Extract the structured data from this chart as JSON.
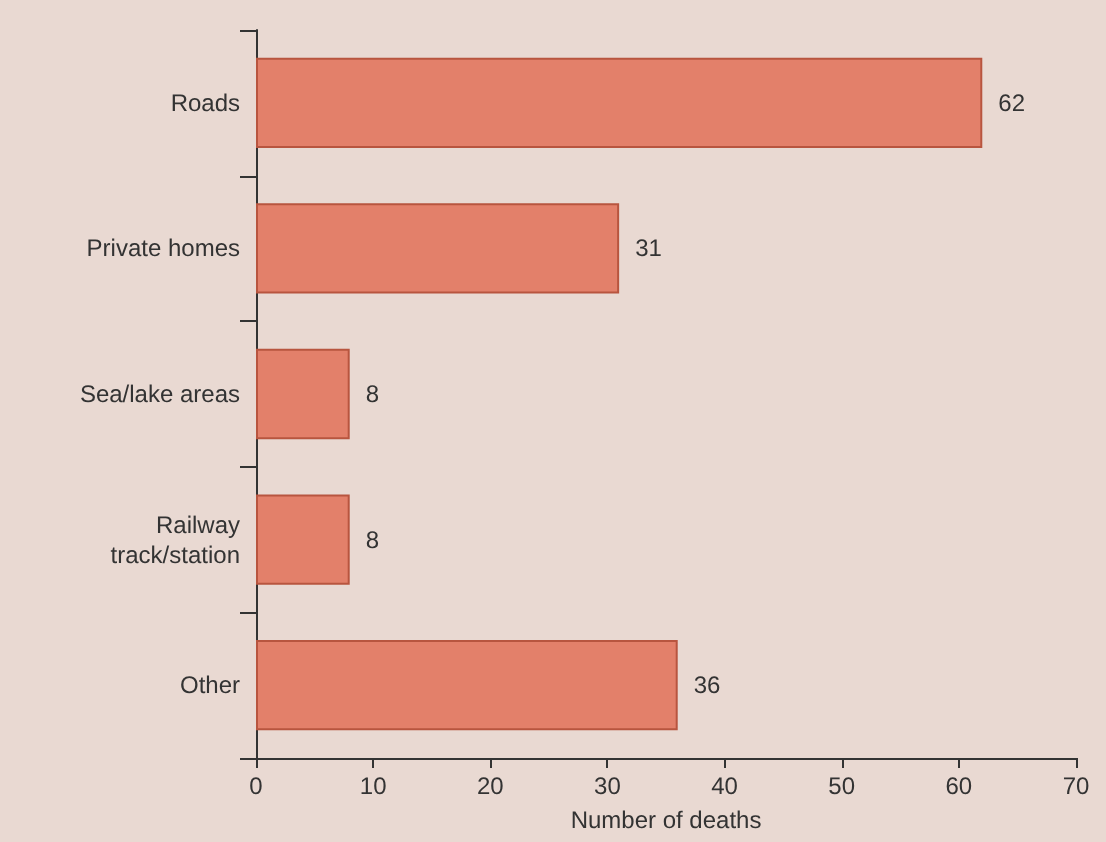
{
  "chart_data": {
    "type": "bar",
    "orientation": "horizontal",
    "categories": [
      "Roads",
      "Private homes",
      "Sea/lake areas",
      "Railway\ntrack/station",
      "Other"
    ],
    "values": [
      62,
      31,
      8,
      8,
      36
    ],
    "color": "#e3806a",
    "xlim": [
      0,
      70
    ],
    "xticks": [
      0,
      10,
      20,
      30,
      40,
      50,
      60,
      70
    ],
    "xlabel": "Number of deaths",
    "data_labels": true,
    "grid": false
  }
}
